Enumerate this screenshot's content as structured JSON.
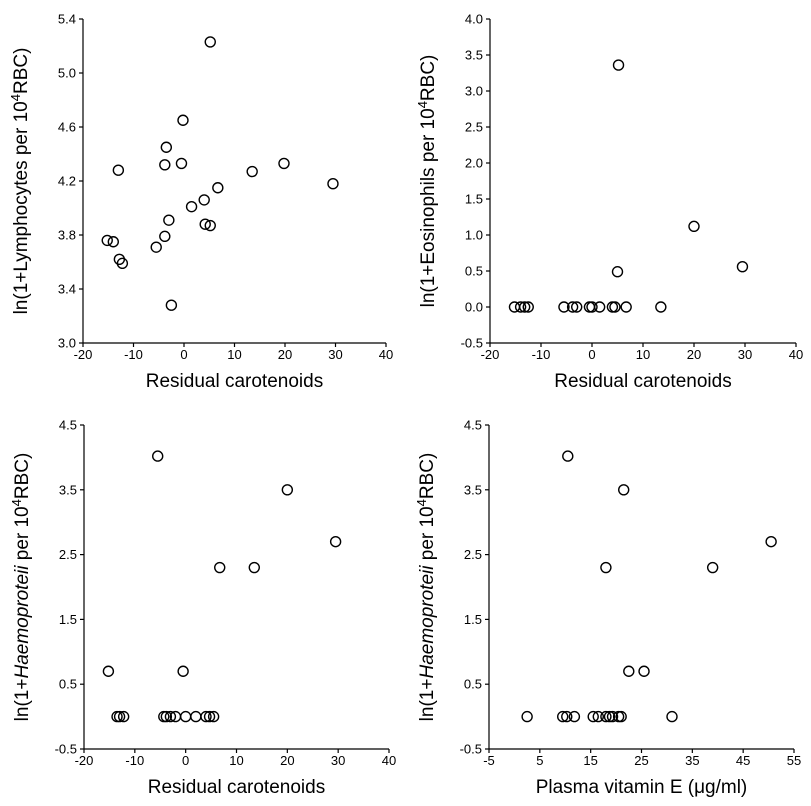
{
  "chart_data": [
    {
      "type": "scatter",
      "xlabel": "Residual carotenoids",
      "ylabel_parts": [
        "ln(1+Lymphocytes per 10",
        "4",
        "RBC)"
      ],
      "xlim": [
        -20,
        40
      ],
      "ylim": [
        3.0,
        5.4
      ],
      "xticks": [
        -20,
        -10,
        0,
        10,
        20,
        30,
        40
      ],
      "yticks": [
        3.0,
        3.4,
        3.8,
        4.2,
        4.6,
        5.0,
        5.4
      ],
      "ytick_labels": [
        "3.0",
        "3.4",
        "3.8",
        "4.2",
        "4.6",
        "5.0",
        "5.4"
      ],
      "points": [
        {
          "x": 5.2,
          "y": 5.23
        },
        {
          "x": -0.2,
          "y": 4.65
        },
        {
          "x": -3.5,
          "y": 4.45
        },
        {
          "x": -0.5,
          "y": 4.33
        },
        {
          "x": -3.8,
          "y": 4.32
        },
        {
          "x": 19.8,
          "y": 4.33
        },
        {
          "x": -13.0,
          "y": 4.28
        },
        {
          "x": 13.5,
          "y": 4.27
        },
        {
          "x": 29.5,
          "y": 4.18
        },
        {
          "x": 6.7,
          "y": 4.15
        },
        {
          "x": 4.0,
          "y": 4.06
        },
        {
          "x": 1.5,
          "y": 4.01
        },
        {
          "x": -3.0,
          "y": 3.91
        },
        {
          "x": 4.2,
          "y": 3.88
        },
        {
          "x": 5.2,
          "y": 3.87
        },
        {
          "x": -3.8,
          "y": 3.79
        },
        {
          "x": -15.2,
          "y": 3.76
        },
        {
          "x": -14.0,
          "y": 3.75
        },
        {
          "x": -5.5,
          "y": 3.71
        },
        {
          "x": -12.8,
          "y": 3.62
        },
        {
          "x": -12.2,
          "y": 3.59
        },
        {
          "x": -2.5,
          "y": 3.28
        }
      ]
    },
    {
      "type": "scatter",
      "xlabel": "Residual carotenoids",
      "ylabel_parts": [
        "ln(1+Eosinophils per 10",
        "4",
        "RBC)"
      ],
      "xlim": [
        -20,
        40
      ],
      "ylim": [
        -0.5,
        4.0
      ],
      "xticks": [
        -20,
        -10,
        0,
        10,
        20,
        30,
        40
      ],
      "yticks": [
        -0.5,
        0.0,
        0.5,
        1.0,
        1.5,
        2.0,
        2.5,
        3.0,
        3.5,
        4.0
      ],
      "ytick_labels": [
        "-0.5",
        "0.0",
        "0.5",
        "1.0",
        "1.5",
        "2.0",
        "2.5",
        "3.0",
        "3.5",
        "4.0"
      ],
      "points": [
        {
          "x": 5.2,
          "y": 3.36
        },
        {
          "x": 20.0,
          "y": 1.12
        },
        {
          "x": 29.5,
          "y": 0.56
        },
        {
          "x": 5.0,
          "y": 0.49
        },
        {
          "x": -15.2,
          "y": 0.0
        },
        {
          "x": -14.0,
          "y": 0.0
        },
        {
          "x": -13.2,
          "y": 0.0
        },
        {
          "x": -12.5,
          "y": 0.0
        },
        {
          "x": -5.5,
          "y": 0.0
        },
        {
          "x": -3.8,
          "y": 0.0
        },
        {
          "x": -3.0,
          "y": 0.0
        },
        {
          "x": -0.5,
          "y": 0.0
        },
        {
          "x": 0.0,
          "y": 0.0
        },
        {
          "x": 1.5,
          "y": 0.0
        },
        {
          "x": 4.0,
          "y": 0.0
        },
        {
          "x": 4.5,
          "y": 0.0
        },
        {
          "x": 6.7,
          "y": 0.0
        },
        {
          "x": 13.5,
          "y": 0.0
        }
      ]
    },
    {
      "type": "scatter",
      "xlabel": "Residual carotenoids",
      "ylabel_parts": [
        "ln(1+",
        "Haemoproteii",
        " per 10",
        "4",
        "RBC)"
      ],
      "xlim": [
        -20,
        40
      ],
      "ylim": [
        -0.5,
        4.5
      ],
      "xticks": [
        -20,
        -10,
        0,
        10,
        20,
        30,
        40
      ],
      "xtick_labels": [
        "-20",
        "-10",
        "0",
        "10",
        "20",
        "30",
        "40"
      ],
      "yticks": [
        -0.5,
        0.5,
        1.5,
        2.5,
        3.5,
        4.5
      ],
      "ytick_labels": [
        "-0.5",
        "0.5",
        "1.5",
        "2.5",
        "3.5",
        "4.5"
      ],
      "points": [
        {
          "x": -5.5,
          "y": 4.02
        },
        {
          "x": 20.0,
          "y": 3.5
        },
        {
          "x": 29.5,
          "y": 2.7
        },
        {
          "x": 6.7,
          "y": 2.3
        },
        {
          "x": 13.5,
          "y": 2.3
        },
        {
          "x": -15.2,
          "y": 0.7
        },
        {
          "x": -0.5,
          "y": 0.7
        },
        {
          "x": -13.5,
          "y": 0.0
        },
        {
          "x": -13.0,
          "y": 0.0
        },
        {
          "x": -12.2,
          "y": 0.0
        },
        {
          "x": -4.3,
          "y": 0.0
        },
        {
          "x": -3.8,
          "y": 0.0
        },
        {
          "x": -3.0,
          "y": 0.0
        },
        {
          "x": -2.0,
          "y": 0.0
        },
        {
          "x": 0.0,
          "y": 0.0
        },
        {
          "x": 2.0,
          "y": 0.0
        },
        {
          "x": 4.0,
          "y": 0.0
        },
        {
          "x": 4.7,
          "y": 0.0
        },
        {
          "x": 5.5,
          "y": 0.0
        }
      ]
    },
    {
      "type": "scatter",
      "xlabel": "Plasma vitamin E (μg/ml)",
      "ylabel_parts": [
        "ln(1+",
        "Haemoproteii",
        " per 10",
        "4",
        "RBC)"
      ],
      "xlim": [
        -5,
        55
      ],
      "ylim": [
        -0.5,
        4.5
      ],
      "xticks": [
        -5,
        5,
        15,
        25,
        35,
        45,
        55
      ],
      "yticks": [
        -0.5,
        0.5,
        1.5,
        2.5,
        3.5,
        4.5
      ],
      "ytick_labels": [
        "-0.5",
        "0.5",
        "1.5",
        "2.5",
        "3.5",
        "4.5"
      ],
      "points": [
        {
          "x": 10.5,
          "y": 4.02
        },
        {
          "x": 21.5,
          "y": 3.5
        },
        {
          "x": 50.5,
          "y": 2.7
        },
        {
          "x": 18.0,
          "y": 2.3
        },
        {
          "x": 39.0,
          "y": 2.3
        },
        {
          "x": 22.5,
          "y": 0.7
        },
        {
          "x": 25.5,
          "y": 0.7
        },
        {
          "x": 2.5,
          "y": 0.0
        },
        {
          "x": 9.5,
          "y": 0.0
        },
        {
          "x": 10.3,
          "y": 0.0
        },
        {
          "x": 11.8,
          "y": 0.0
        },
        {
          "x": 15.5,
          "y": 0.0
        },
        {
          "x": 16.5,
          "y": 0.0
        },
        {
          "x": 18.0,
          "y": 0.0
        },
        {
          "x": 18.7,
          "y": 0.0
        },
        {
          "x": 19.3,
          "y": 0.0
        },
        {
          "x": 20.5,
          "y": 0.0
        },
        {
          "x": 21.0,
          "y": 0.0
        },
        {
          "x": 31.0,
          "y": 0.0
        }
      ]
    }
  ]
}
